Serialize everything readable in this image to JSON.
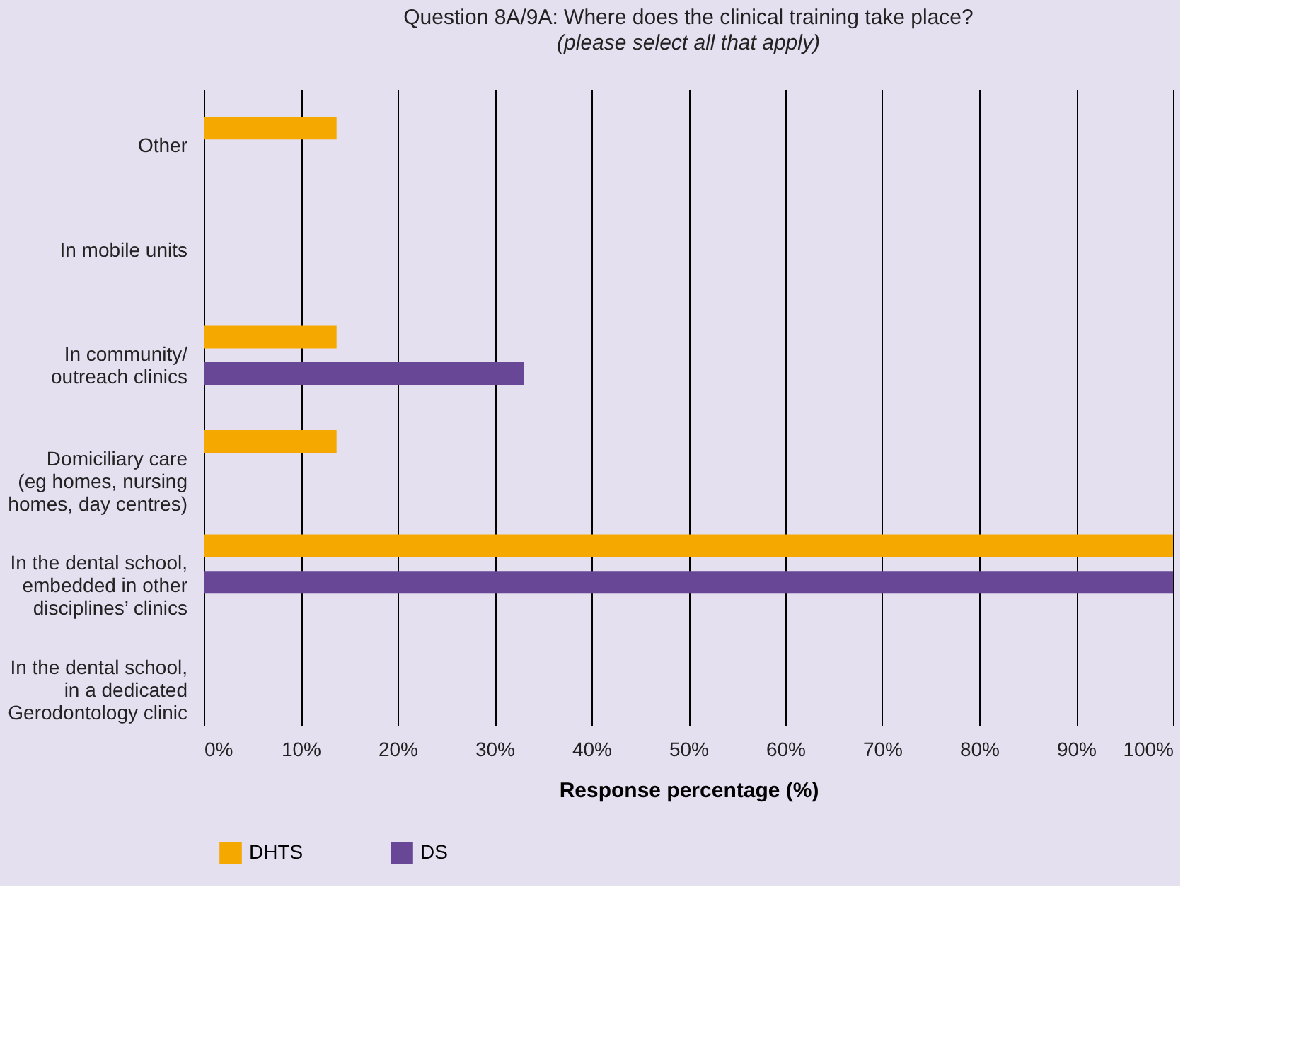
{
  "chart_data": {
    "type": "bar",
    "orientation": "horizontal",
    "title": "Question 8A/9A: Where does the clinical training take place?",
    "subtitle": "(please select all that apply)",
    "xlabel": "Response percentage (%)",
    "categories": [
      "Other",
      "In mobile units",
      "In community/\noutreach clinics",
      "Domiciliary care\n(eg homes, nursing\nhomes, day centres)",
      "In the dental school,\nembedded in other\ndisciplines’ clinics",
      "In the dental school,\nin a dedicated\nGerodontology clinic"
    ],
    "series": [
      {
        "name": "DHTS",
        "color": "#f5a800",
        "values": [
          13.7,
          0,
          13.7,
          13.7,
          100,
          0
        ]
      },
      {
        "name": "DS",
        "color": "#674796",
        "values": [
          0,
          0,
          33,
          0,
          100,
          0
        ]
      }
    ],
    "xlim": [
      0,
      100
    ],
    "xticks": [
      {
        "value": 0,
        "label": "0%"
      },
      {
        "value": 10,
        "label": "10%"
      },
      {
        "value": 20,
        "label": "20%"
      },
      {
        "value": 30,
        "label": "30%"
      },
      {
        "value": 40,
        "label": "40%"
      },
      {
        "value": 50,
        "label": "50%"
      },
      {
        "value": 60,
        "label": "60%"
      },
      {
        "value": 70,
        "label": "70%"
      },
      {
        "value": 80,
        "label": "80%"
      },
      {
        "value": 90,
        "label": "90%"
      },
      {
        "value": 100,
        "label": "100%"
      }
    ],
    "grid": "x",
    "legend": "bottom"
  }
}
